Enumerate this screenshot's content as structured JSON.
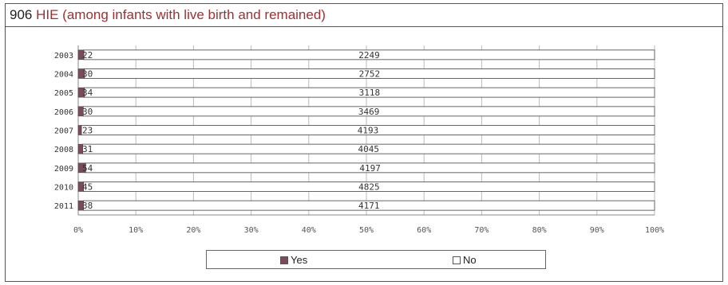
{
  "header": {
    "number": "906",
    "title": "HIE (among infants with live birth and remained)"
  },
  "chart_data": {
    "type": "bar",
    "orientation": "horizontal",
    "stacked": "percent",
    "categories": [
      "2003",
      "2004",
      "2005",
      "2006",
      "2007",
      "2008",
      "2009",
      "2010",
      "2011"
    ],
    "series": [
      {
        "name": "Yes",
        "values": [
          22,
          30,
          34,
          30,
          23,
          31,
          54,
          45,
          38
        ],
        "color": "#7b4a5c"
      },
      {
        "name": "No",
        "values": [
          2249,
          2752,
          3118,
          3469,
          4193,
          4045,
          4197,
          4825,
          4171
        ],
        "color": "#ffffff"
      }
    ],
    "xticks": [
      "0%",
      "10%",
      "20%",
      "30%",
      "40%",
      "50%",
      "60%",
      "70%",
      "80%",
      "90%",
      "100%"
    ],
    "xlim": [
      0,
      100
    ],
    "grid": true,
    "legend_position": "bottom"
  }
}
